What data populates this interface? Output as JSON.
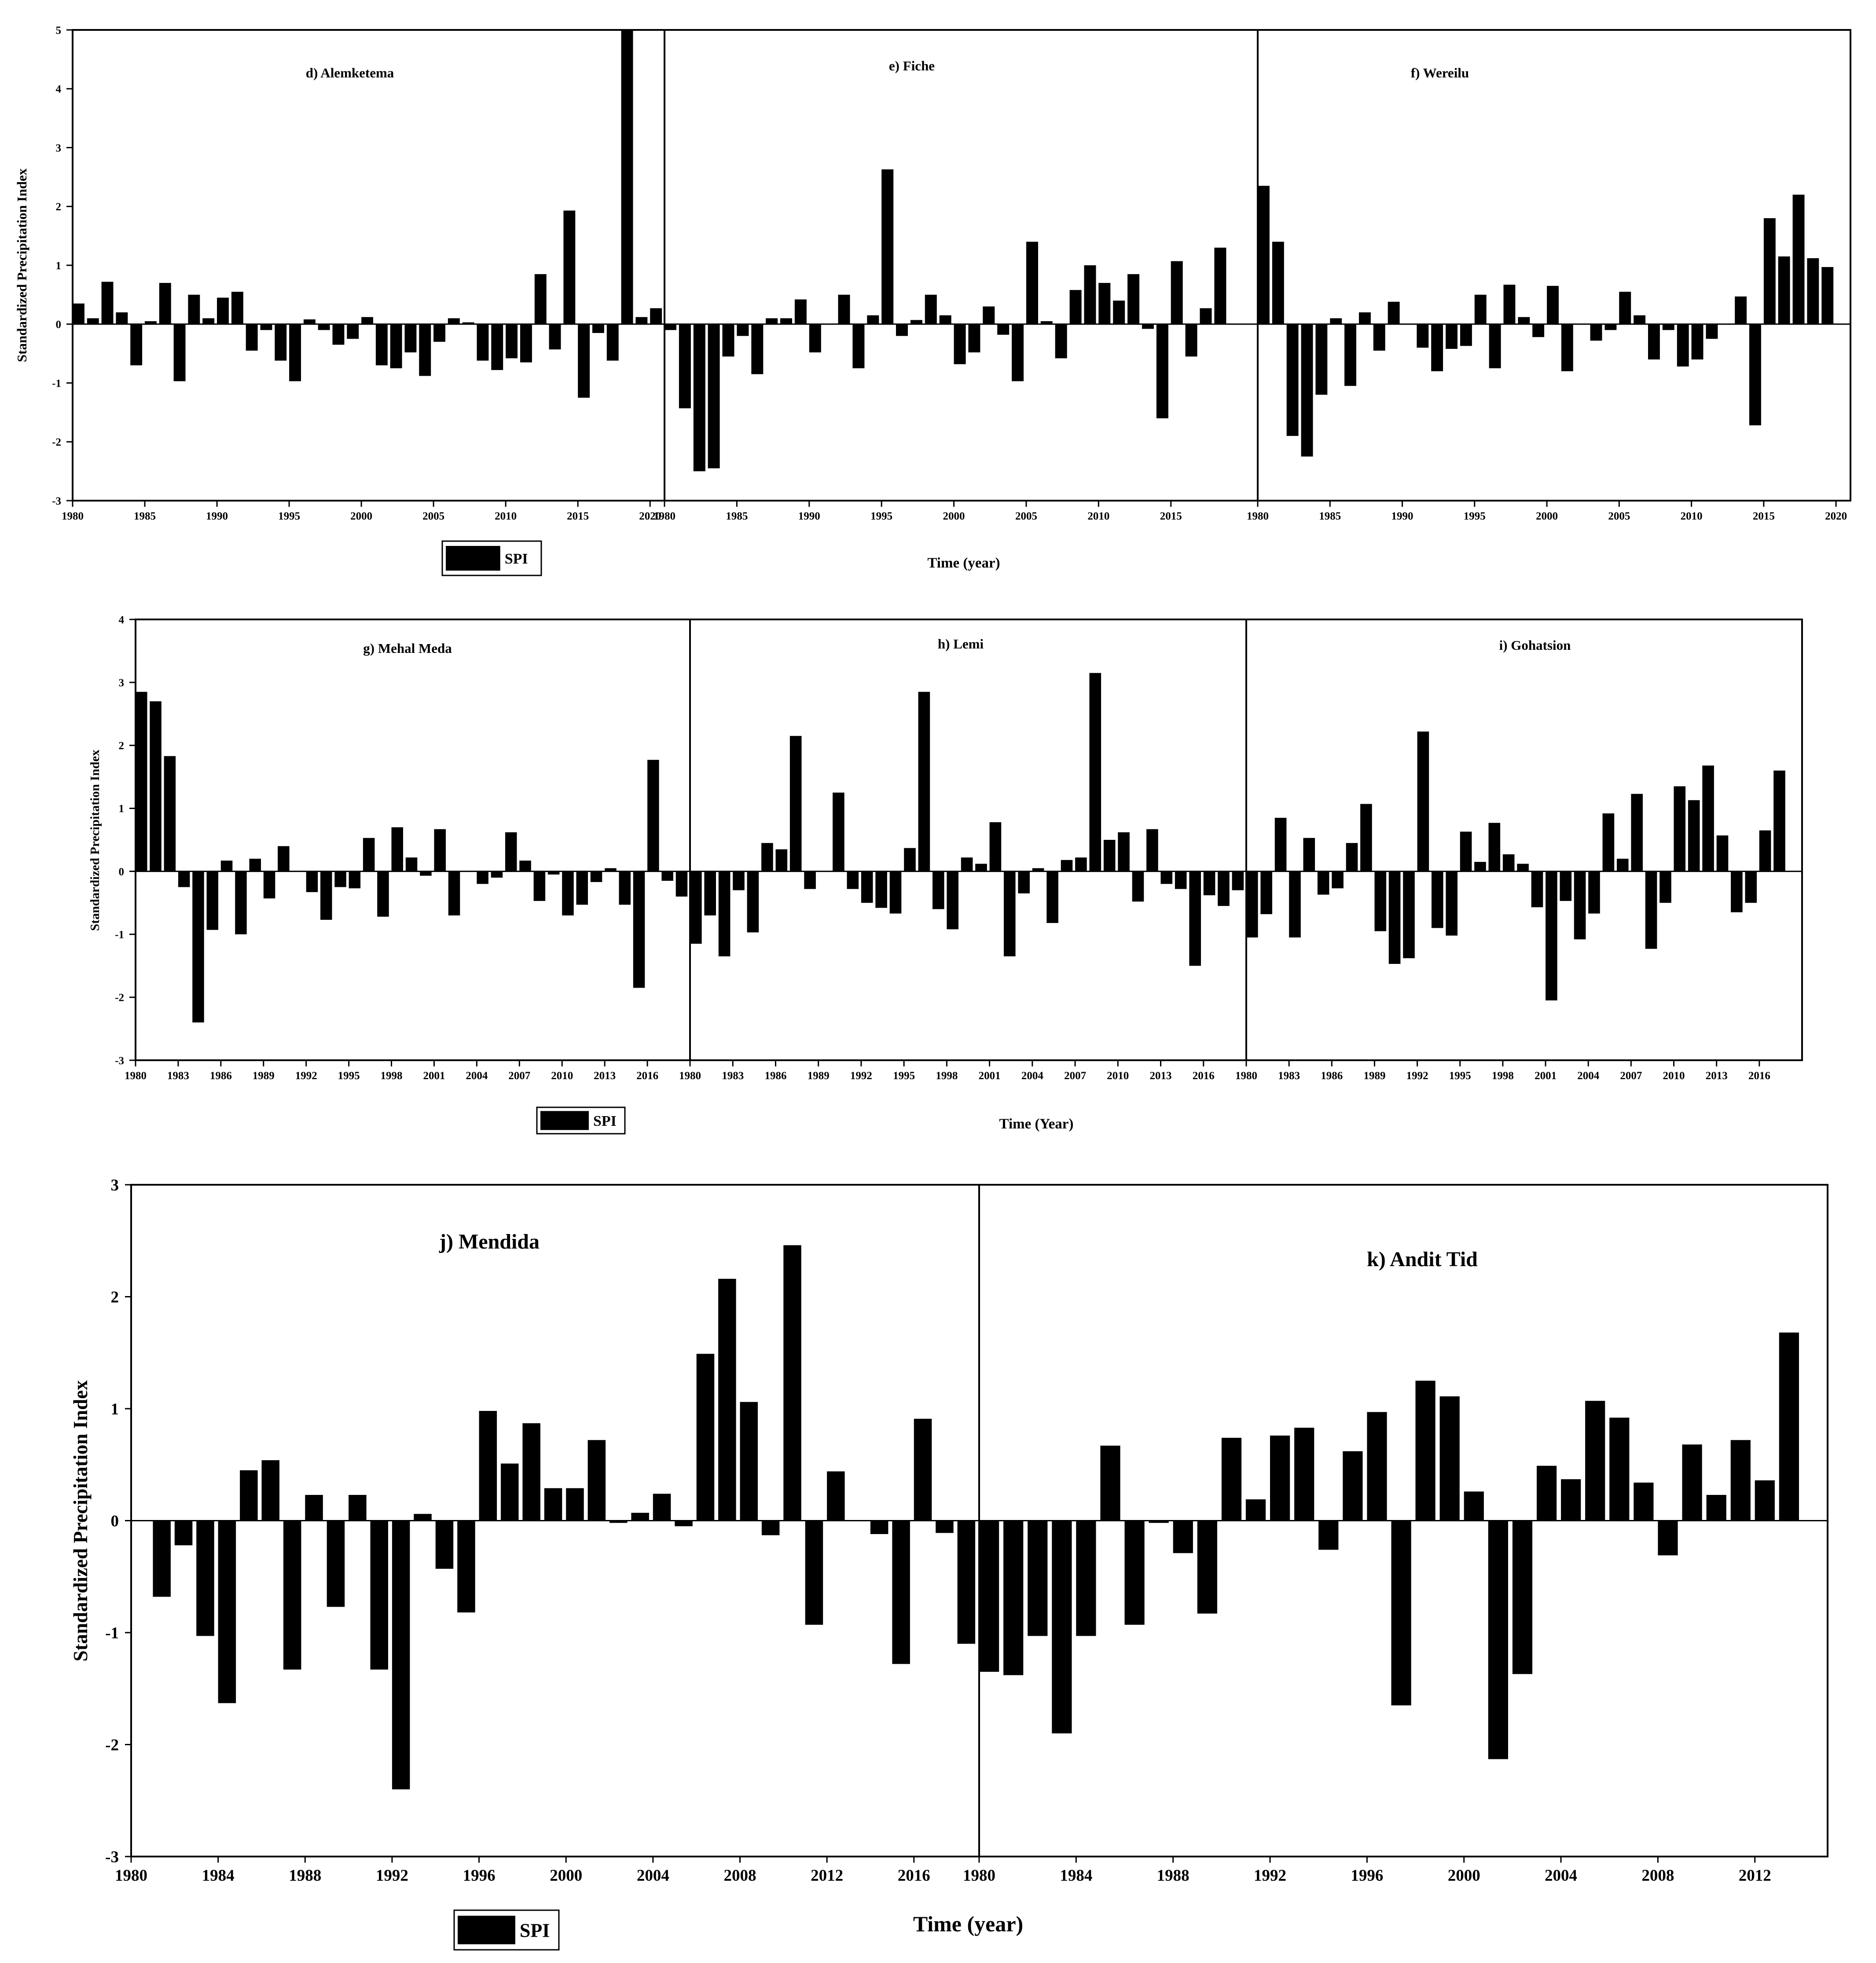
{
  "figure": {
    "rows": [
      {
        "ylabel": "Standardized Precipitation Index",
        "xlabel": "Time (year)",
        "legend": "SPI"
      },
      {
        "ylabel": "Standardized Precipitation Index",
        "xlabel": "Time (Year)",
        "legend": "SPI"
      },
      {
        "ylabel": "Standardized Precipitation Index",
        "xlabel": "Time (year)",
        "legend": "SPI"
      }
    ]
  },
  "chart_data": [
    {
      "type": "bar",
      "title": "d) Alemketema",
      "row": 0,
      "ylim": [
        -3,
        5
      ],
      "yticks": [
        -3,
        -2,
        -1,
        0,
        1,
        2,
        3,
        4,
        5
      ],
      "xticks": [
        1980,
        1985,
        1990,
        1995,
        2000,
        2005,
        2010,
        2015,
        2020
      ],
      "x": [
        1980,
        1981,
        1982,
        1983,
        1984,
        1985,
        1986,
        1987,
        1988,
        1989,
        1990,
        1991,
        1992,
        1993,
        1994,
        1995,
        1996,
        1997,
        1998,
        1999,
        2000,
        2001,
        2002,
        2003,
        2004,
        2005,
        2006,
        2007,
        2008,
        2009,
        2010,
        2011,
        2012,
        2013,
        2014,
        2015,
        2016,
        2017,
        2018,
        2019,
        2020
      ],
      "values": [
        0.35,
        0.1,
        0.72,
        0.2,
        -0.7,
        0.05,
        0.7,
        -0.97,
        0.5,
        0.1,
        0.45,
        0.55,
        -0.45,
        -0.1,
        -0.62,
        -0.97,
        0.08,
        -0.1,
        -0.35,
        -0.25,
        0.12,
        -0.7,
        -0.75,
        -0.48,
        -0.88,
        -0.3,
        0.1,
        0.03,
        -0.62,
        -0.78,
        -0.58,
        -0.65,
        0.85,
        -0.43,
        1.93,
        -1.25,
        -0.15,
        -0.62,
        5.0,
        0.12,
        0.27
      ]
    },
    {
      "type": "bar",
      "title": "e) Fiche",
      "row": 0,
      "ylim": [
        -3,
        5
      ],
      "xticks": [
        1980,
        1985,
        1990,
        1995,
        2000,
        2005,
        2010,
        2015
      ],
      "x": [
        1980,
        1981,
        1982,
        1983,
        1984,
        1985,
        1986,
        1987,
        1988,
        1989,
        1990,
        1991,
        1992,
        1993,
        1994,
        1995,
        1996,
        1997,
        1998,
        1999,
        2000,
        2001,
        2002,
        2003,
        2004,
        2005,
        2006,
        2007,
        2008,
        2009,
        2010,
        2011,
        2012,
        2013,
        2014,
        2015,
        2016,
        2017,
        2018,
        2019
      ],
      "values": [
        -0.1,
        -1.43,
        -2.5,
        -2.45,
        -0.55,
        -0.2,
        -0.85,
        0.1,
        0.1,
        0.42,
        -0.48,
        0.0,
        0.5,
        -0.75,
        0.15,
        2.63,
        -0.2,
        0.07,
        0.5,
        0.15,
        -0.68,
        -0.48,
        0.3,
        -0.18,
        -0.97,
        1.4,
        0.05,
        -0.58,
        0.58,
        1.0,
        0.7,
        0.4,
        0.85,
        -0.08,
        -1.6,
        1.07,
        -0.55,
        0.27,
        1.3,
        0.0
      ]
    },
    {
      "type": "bar",
      "title": "f) Wereilu",
      "row": 0,
      "ylim": [
        -3,
        5
      ],
      "xticks": [
        1980,
        1985,
        1990,
        1995,
        2000,
        2005,
        2010,
        2015,
        2020
      ],
      "x": [
        1980,
        1981,
        1982,
        1983,
        1984,
        1985,
        1986,
        1987,
        1988,
        1989,
        1990,
        1991,
        1992,
        1993,
        1994,
        1995,
        1996,
        1997,
        1998,
        1999,
        2000,
        2001,
        2002,
        2003,
        2004,
        2005,
        2006,
        2007,
        2008,
        2009,
        2010,
        2011,
        2012,
        2013,
        2014,
        2015,
        2016,
        2017,
        2018,
        2019,
        2020
      ],
      "values": [
        2.35,
        1.4,
        -1.9,
        -2.25,
        -1.2,
        0.1,
        -1.05,
        0.2,
        -0.45,
        0.38,
        0.0,
        -0.4,
        -0.8,
        -0.42,
        -0.37,
        0.5,
        -0.75,
        0.67,
        0.12,
        -0.22,
        0.65,
        -0.8,
        0.0,
        -0.28,
        -0.1,
        0.55,
        0.15,
        -0.6,
        -0.1,
        -0.72,
        -0.6,
        -0.25,
        0.0,
        0.47,
        -1.72,
        1.8,
        1.15,
        2.2,
        1.12,
        0.97,
        0.0
      ]
    },
    {
      "type": "bar",
      "title": "g) Mehal Meda",
      "row": 1,
      "ylim": [
        -3,
        4
      ],
      "yticks": [
        -3,
        -2,
        -1,
        0,
        1,
        2,
        3,
        4
      ],
      "xticks": [
        1980,
        1983,
        1986,
        1989,
        1992,
        1995,
        1998,
        2001,
        2004,
        2007,
        2010,
        2013,
        2016
      ],
      "x": [
        1980,
        1981,
        1982,
        1983,
        1984,
        1985,
        1986,
        1987,
        1988,
        1989,
        1990,
        1991,
        1992,
        1993,
        1994,
        1995,
        1996,
        1997,
        1998,
        1999,
        2000,
        2001,
        2002,
        2003,
        2004,
        2005,
        2006,
        2007,
        2008,
        2009,
        2010,
        2011,
        2012,
        2013,
        2014,
        2015,
        2016,
        2017,
        2018
      ],
      "values": [
        2.85,
        2.7,
        1.83,
        -0.25,
        -2.4,
        -0.93,
        0.17,
        -1.0,
        0.2,
        -0.43,
        0.4,
        0.0,
        -0.33,
        -0.77,
        -0.25,
        -0.27,
        0.53,
        -0.72,
        0.7,
        0.22,
        -0.07,
        0.67,
        -0.7,
        0.0,
        -0.2,
        -0.1,
        0.62,
        0.17,
        -0.47,
        -0.05,
        -0.7,
        -0.53,
        -0.17,
        0.05,
        -0.53,
        -1.85,
        1.77,
        -0.15,
        -0.4
      ]
    },
    {
      "type": "bar",
      "title": "h) Lemi",
      "row": 1,
      "ylim": [
        -3,
        4
      ],
      "xticks": [
        1980,
        1983,
        1986,
        1989,
        1992,
        1995,
        1998,
        2001,
        2004,
        2007,
        2010,
        2013,
        2016
      ],
      "x": [
        1980,
        1981,
        1982,
        1983,
        1984,
        1985,
        1986,
        1987,
        1988,
        1989,
        1990,
        1991,
        1992,
        1993,
        1994,
        1995,
        1996,
        1997,
        1998,
        1999,
        2000,
        2001,
        2002,
        2003,
        2004,
        2005,
        2006,
        2007,
        2008,
        2009,
        2010,
        2011,
        2012,
        2013,
        2014,
        2015,
        2016,
        2017,
        2018
      ],
      "values": [
        -1.15,
        -0.7,
        -1.35,
        -0.3,
        -0.97,
        0.45,
        0.35,
        2.15,
        -0.28,
        0.0,
        1.25,
        -0.28,
        -0.5,
        -0.58,
        -0.67,
        0.37,
        2.85,
        -0.6,
        -0.92,
        0.22,
        0.12,
        0.78,
        -1.35,
        -0.35,
        0.05,
        -0.82,
        0.18,
        0.22,
        3.15,
        0.5,
        0.62,
        -0.48,
        0.67,
        -0.2,
        -0.28,
        -1.5,
        -0.38,
        -0.55,
        -0.3
      ]
    },
    {
      "type": "bar",
      "title": "i) Gohatsion",
      "row": 1,
      "ylim": [
        -3,
        4
      ],
      "xticks": [
        1980,
        1983,
        1986,
        1989,
        1992,
        1995,
        1998,
        2001,
        2004,
        2007,
        2010,
        2013,
        2016
      ],
      "x": [
        1980,
        1981,
        1982,
        1983,
        1984,
        1985,
        1986,
        1987,
        1988,
        1989,
        1990,
        1991,
        1992,
        1993,
        1994,
        1995,
        1996,
        1997,
        1998,
        1999,
        2000,
        2001,
        2002,
        2003,
        2004,
        2005,
        2006,
        2007,
        2008,
        2009,
        2010,
        2011,
        2012,
        2013,
        2014,
        2015,
        2016,
        2017,
        2018
      ],
      "values": [
        -1.05,
        -0.68,
        0.85,
        -1.05,
        0.53,
        -0.37,
        -0.27,
        0.45,
        1.07,
        -0.95,
        -1.47,
        -1.38,
        2.22,
        -0.9,
        -1.02,
        0.63,
        0.15,
        0.77,
        0.27,
        0.12,
        -0.57,
        -2.05,
        -0.47,
        -1.08,
        -0.67,
        0.92,
        0.2,
        1.23,
        -1.23,
        -0.5,
        1.35,
        1.13,
        1.68,
        0.57,
        -0.65,
        -0.5,
        0.65,
        1.6,
        0.0
      ]
    },
    {
      "type": "bar",
      "title": "j) Mendida",
      "row": 2,
      "ylim": [
        -3,
        3
      ],
      "yticks": [
        -3,
        -2,
        -1,
        0,
        1,
        2,
        3
      ],
      "xticks": [
        1980,
        1984,
        1988,
        1992,
        1996,
        2000,
        2004,
        2008,
        2012,
        2016
      ],
      "x": [
        1980,
        1981,
        1982,
        1983,
        1984,
        1985,
        1986,
        1987,
        1988,
        1989,
        1990,
        1991,
        1992,
        1993,
        1994,
        1995,
        1996,
        1997,
        1998,
        1999,
        2000,
        2001,
        2002,
        2003,
        2004,
        2005,
        2006,
        2007,
        2008,
        2009,
        2010,
        2011,
        2012,
        2013,
        2014,
        2015,
        2016,
        2017,
        2018
      ],
      "values": [
        0.0,
        -0.68,
        -0.22,
        -1.03,
        -1.63,
        0.45,
        0.54,
        -1.33,
        0.23,
        -0.77,
        0.23,
        -1.33,
        -2.4,
        0.06,
        -0.43,
        -0.82,
        0.98,
        0.51,
        0.87,
        0.29,
        0.29,
        0.72,
        -0.02,
        0.07,
        0.24,
        -0.05,
        1.49,
        2.16,
        1.06,
        -0.13,
        2.46,
        -0.93,
        0.44,
        0.0,
        -0.12,
        -1.28,
        0.91,
        -0.11,
        -1.1
      ]
    },
    {
      "type": "bar",
      "title": "k) Andit Tid",
      "row": 2,
      "ylim": [
        -3,
        3
      ],
      "xticks": [
        1980,
        1984,
        1988,
        1992,
        1996,
        2000,
        2004,
        2008,
        2012
      ],
      "x": [
        1980,
        1981,
        1982,
        1983,
        1984,
        1985,
        1986,
        1987,
        1988,
        1989,
        1990,
        1991,
        1992,
        1993,
        1994,
        1995,
        1996,
        1997,
        1998,
        1999,
        2000,
        2001,
        2002,
        2003,
        2004,
        2005,
        2006,
        2007,
        2008,
        2009,
        2010,
        2011,
        2012,
        2013,
        2014
      ],
      "values": [
        -1.35,
        -1.38,
        -1.03,
        -1.9,
        -1.03,
        0.67,
        -0.93,
        -0.02,
        -0.29,
        -0.83,
        0.74,
        0.19,
        0.76,
        0.83,
        -0.26,
        0.62,
        0.97,
        -1.65,
        1.25,
        1.11,
        0.26,
        -2.13,
        -1.37,
        0.49,
        0.37,
        1.07,
        0.92,
        0.34,
        -0.31,
        0.68,
        0.23,
        0.72,
        0.36,
        1.68,
        0.0
      ]
    }
  ]
}
